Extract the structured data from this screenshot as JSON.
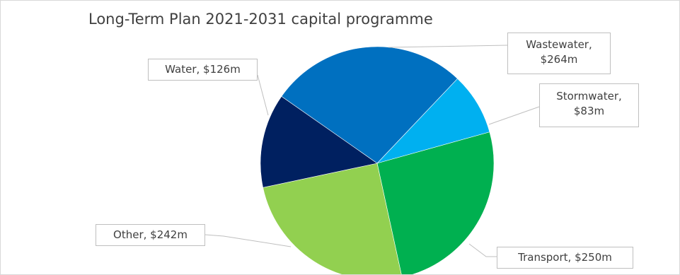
{
  "chart_data": {
    "type": "pie",
    "title": "Long-Term Plan 2021-2031 capital programme",
    "slices": [
      {
        "name": "Wastewater",
        "value": 264,
        "label_lines": [
          "Wastewater,",
          "$264m"
        ],
        "color": "#0070c0"
      },
      {
        "name": "Stormwater",
        "value": 83,
        "label_lines": [
          "Stormwater,",
          "$83m"
        ],
        "color": "#00b0f0"
      },
      {
        "name": "Transport",
        "value": 250,
        "label_lines": [
          "Transport, $250m"
        ],
        "color": "#00b050"
      },
      {
        "name": "Other",
        "value": 242,
        "label_lines": [
          "Other, $242m"
        ],
        "color": "#92d050"
      },
      {
        "name": "Water",
        "value": 126,
        "label_lines": [
          "Water, $126m"
        ],
        "color": "#002060"
      }
    ]
  }
}
